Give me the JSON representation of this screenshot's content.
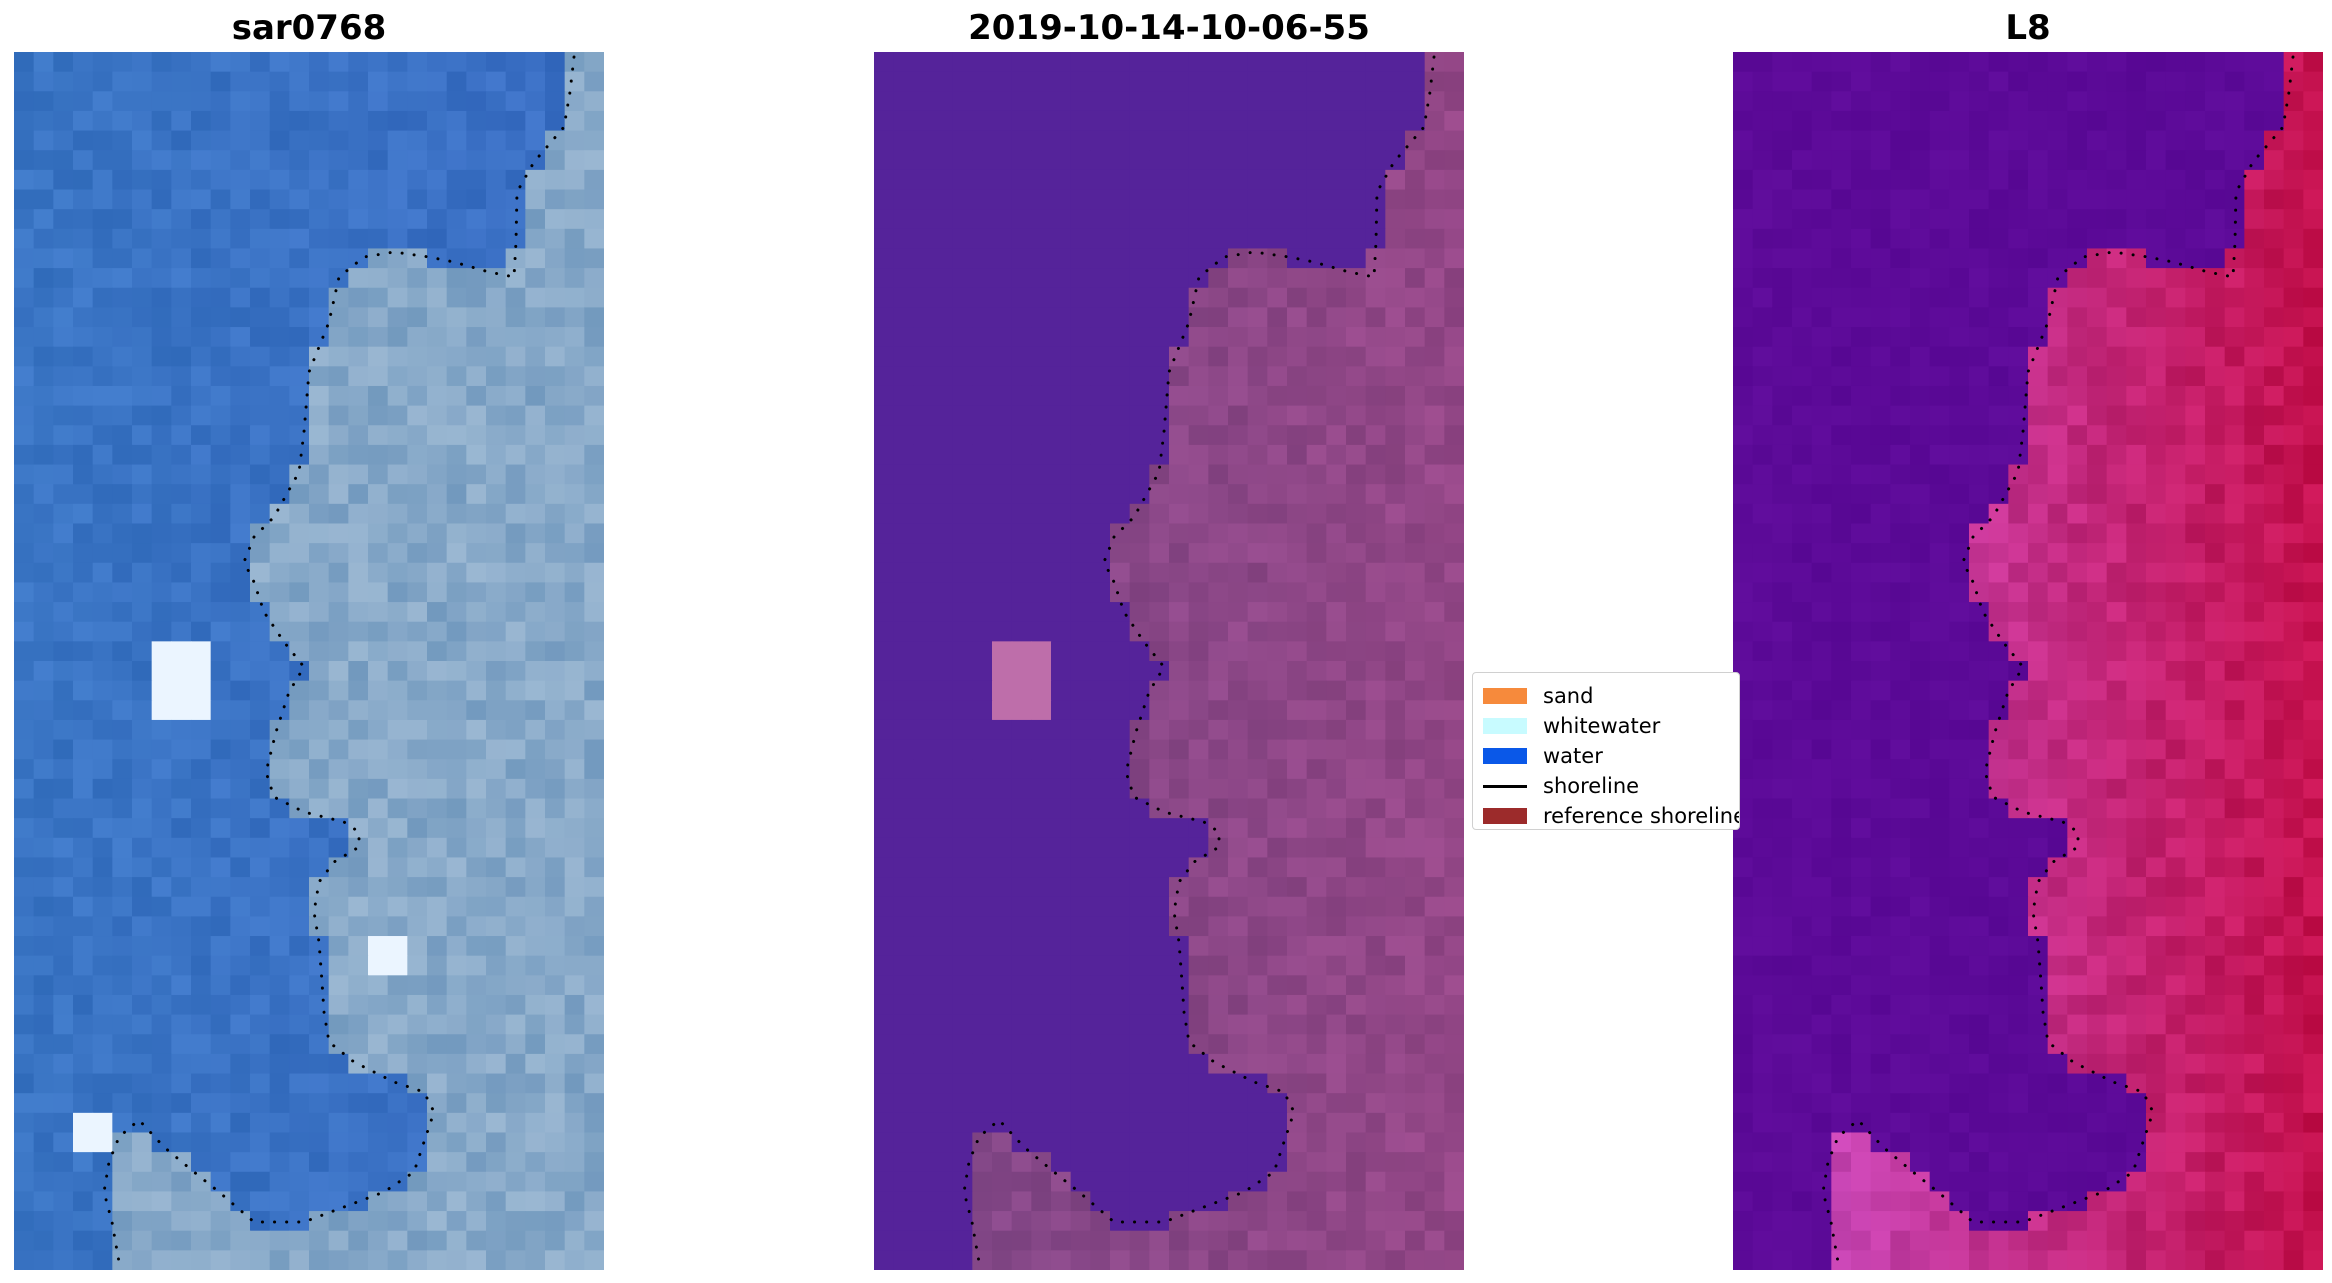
{
  "panels": [
    {
      "title": "sar0768",
      "kind": "rgb"
    },
    {
      "title": "2019-10-14-10-06-55",
      "kind": "classified"
    },
    {
      "title": "L8",
      "kind": "index"
    }
  ],
  "legend": {
    "items": [
      {
        "label": "sand",
        "color": "#f68a3c",
        "type": "patch"
      },
      {
        "label": "whitewater",
        "color": "#c8fbff",
        "type": "patch"
      },
      {
        "label": "water",
        "color": "#0a58e8",
        "type": "patch"
      },
      {
        "label": "shoreline",
        "color": "#000000",
        "type": "line"
      },
      {
        "label": "reference shoreline",
        "color": "#9c2b2b",
        "type": "patch"
      }
    ]
  },
  "colors": {
    "rgb_water": "#3a6fc4",
    "rgb_land": "#86a8c8",
    "class_water": "#55239a",
    "class_land": "#8a4787",
    "index_water": "#5c0a98",
    "index_land": "#c4104c"
  }
}
